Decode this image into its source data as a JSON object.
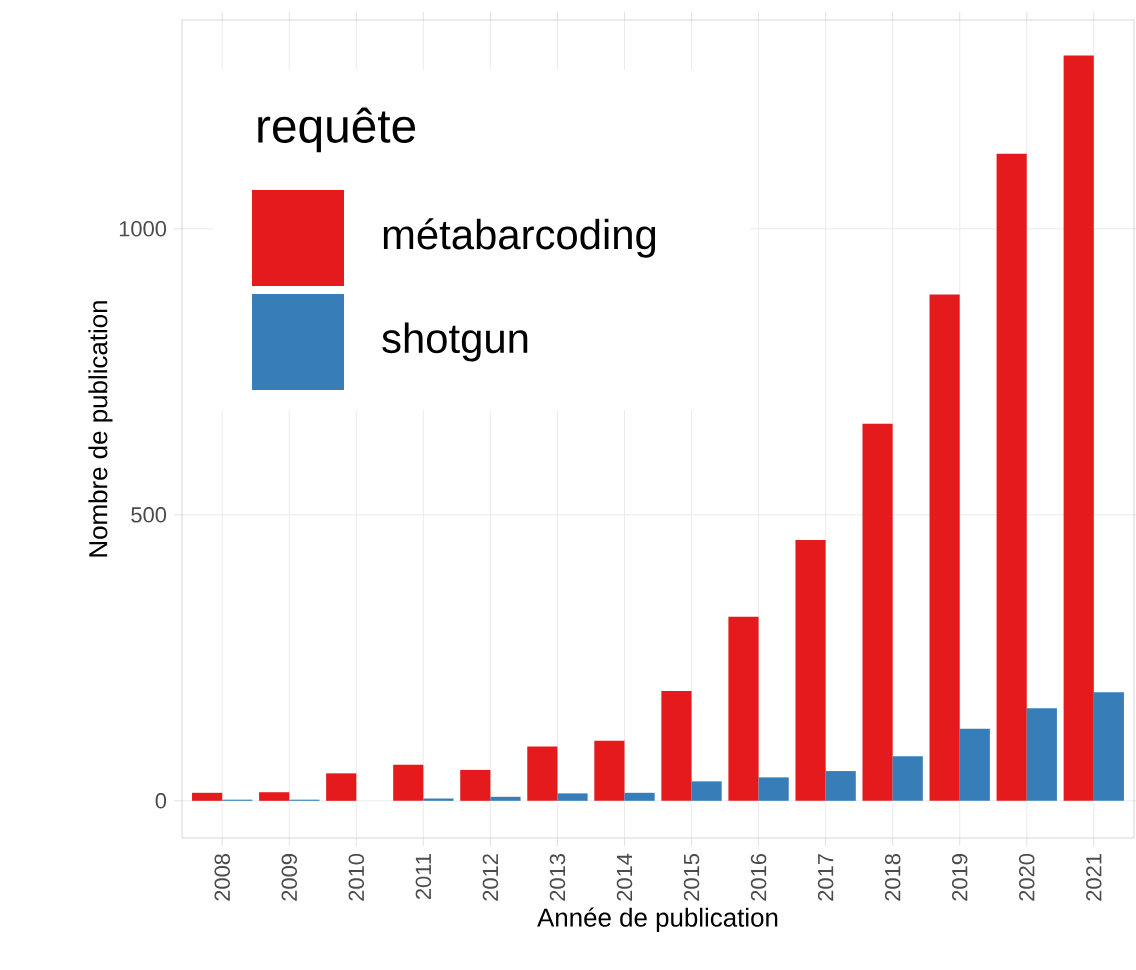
{
  "chart_data": {
    "type": "bar",
    "xlabel": "Année de publication",
    "ylabel": "Nombre de publication",
    "legend_title": "requête",
    "categories": [
      "2008",
      "2009",
      "2010",
      "2011",
      "2012",
      "2013",
      "2014",
      "2015",
      "2016",
      "2017",
      "2018",
      "2019",
      "2020",
      "2021"
    ],
    "series": [
      {
        "name": "métabarcoding",
        "color": "#e41a1c",
        "values": [
          14,
          15,
          48,
          63,
          54,
          95,
          105,
          192,
          322,
          456,
          659,
          885,
          1131,
          1303
        ]
      },
      {
        "name": "shotgun",
        "color": "#377eb8",
        "values": [
          2,
          2,
          0,
          4,
          7,
          13,
          14,
          34,
          41,
          52,
          78,
          126,
          162,
          190
        ]
      }
    ],
    "ylim": [
      -65,
      1365
    ],
    "yticks": [
      0,
      500,
      1000
    ],
    "grid": true,
    "legend": "top left"
  }
}
